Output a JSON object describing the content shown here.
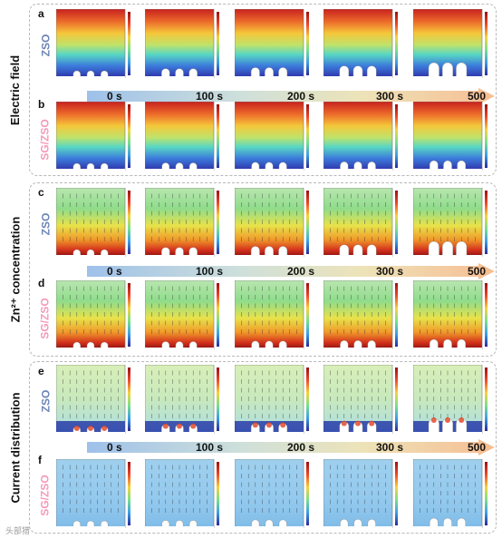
{
  "rows": [
    {
      "letter": "a",
      "sample": "ZSO",
      "map": "field",
      "colorbar": true,
      "vectors": false,
      "depth": [
        0.0,
        0.08,
        0.12,
        0.18,
        0.3
      ]
    },
    {
      "letter": "b",
      "sample": "SG/ZSO",
      "map": "field",
      "colorbar": true,
      "vectors": false,
      "depth": [
        0.0,
        0.02,
        0.04,
        0.06,
        0.1
      ]
    },
    {
      "letter": "c",
      "sample": "ZSO",
      "map": "conc",
      "colorbar": true,
      "vectors": true,
      "depth": [
        0.0,
        0.08,
        0.12,
        0.18,
        0.3
      ]
    },
    {
      "letter": "d",
      "sample": "SG/ZSO",
      "map": "conc",
      "colorbar": true,
      "vectors": true,
      "depth": [
        0.0,
        0.02,
        0.04,
        0.06,
        0.1
      ]
    },
    {
      "letter": "e",
      "sample": "ZSO",
      "map": "current_zso",
      "colorbar": true,
      "vectors": true,
      "depth": [
        0.0,
        0.08,
        0.12,
        0.18,
        0.3
      ]
    },
    {
      "letter": "f",
      "sample": "SG/ZSO",
      "map": "current_sg",
      "colorbar": true,
      "vectors": true,
      "depth": [
        0.0,
        0.02,
        0.04,
        0.06,
        0.1
      ]
    }
  ],
  "sections": [
    {
      "title": "Electric field"
    },
    {
      "title": "Zn²⁺ concentration"
    },
    {
      "title": "Current distribution"
    }
  ],
  "timeline": [
    "0 s",
    "100 s",
    "200 s",
    "300 s",
    "500 s"
  ],
  "colors": {
    "zso_label": "#6b84b5",
    "sg_label": "#f49ab6",
    "jet_low": "#2c2ca8",
    "jet_high": "#c8211e"
  },
  "watermark": "头部猎"
}
